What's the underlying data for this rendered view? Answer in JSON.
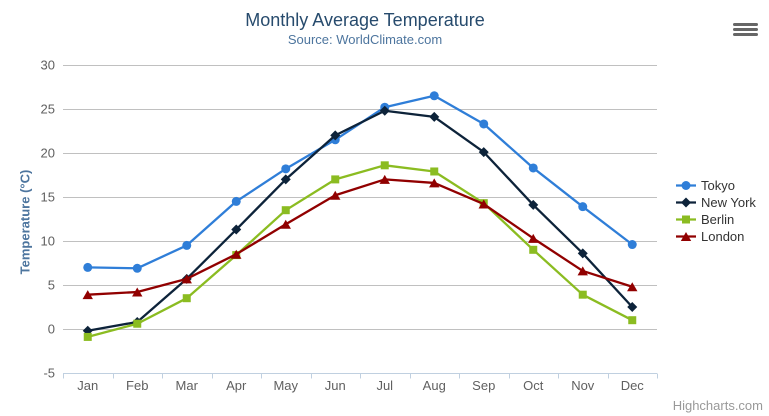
{
  "chart_data": {
    "type": "line",
    "title": "Monthly Average Temperature",
    "subtitle": "Source: WorldClimate.com",
    "xlabel": "",
    "ylabel": "Temperature (°C)",
    "categories": [
      "Jan",
      "Feb",
      "Mar",
      "Apr",
      "May",
      "Jun",
      "Jul",
      "Aug",
      "Sep",
      "Oct",
      "Nov",
      "Dec"
    ],
    "ylim": [
      -5,
      30
    ],
    "ytick_step": 5,
    "grid": true,
    "legend_position": "right",
    "series": [
      {
        "name": "Tokyo",
        "color": "#2f7ed8",
        "marker": "circle",
        "values": [
          7.0,
          6.9,
          9.5,
          14.5,
          18.2,
          21.5,
          25.2,
          26.5,
          23.3,
          18.3,
          13.9,
          9.6
        ]
      },
      {
        "name": "New York",
        "color": "#0d233a",
        "marker": "diamond",
        "values": [
          -0.2,
          0.8,
          5.7,
          11.3,
          17.0,
          22.0,
          24.8,
          24.1,
          20.1,
          14.1,
          8.6,
          2.5
        ]
      },
      {
        "name": "Berlin",
        "color": "#8bbc21",
        "marker": "square",
        "values": [
          -0.9,
          0.6,
          3.5,
          8.4,
          13.5,
          17.0,
          18.6,
          17.9,
          14.3,
          9.0,
          3.9,
          1.0
        ]
      },
      {
        "name": "London",
        "color": "#910000",
        "marker": "triangle",
        "values": [
          3.9,
          4.2,
          5.7,
          8.5,
          11.9,
          15.2,
          17.0,
          16.6,
          14.2,
          10.3,
          6.6,
          4.8
        ]
      }
    ]
  },
  "credits": {
    "label": "Highcharts.com"
  },
  "colors": {
    "title": "#274b6d",
    "subtitle": "#4d759e",
    "axis_title": "#4d759e",
    "grid_line": "#c0c0c0",
    "axis_line": "#c0d0e0",
    "axis_label": "#606060",
    "legend_text": "#333333",
    "credits_text": "#999999",
    "menu_icon": "#666666"
  }
}
